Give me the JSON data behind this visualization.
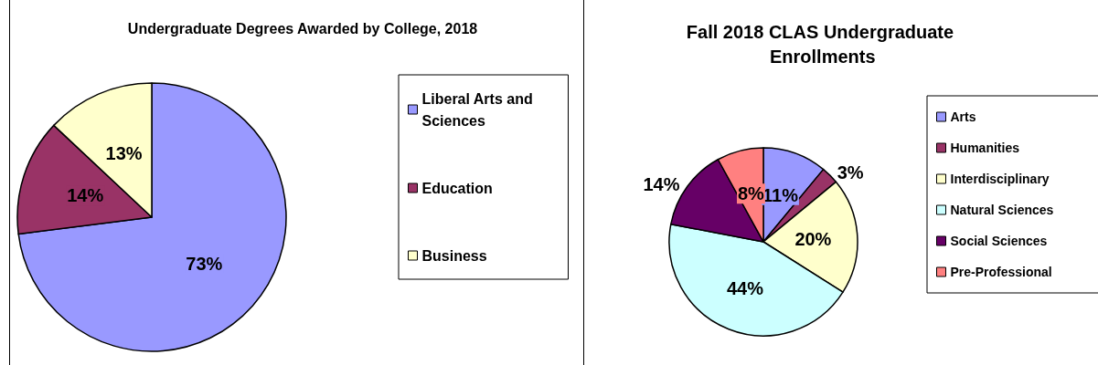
{
  "chart_data": [
    {
      "type": "pie",
      "title": "Undergraduate Degrees Awarded by College, 2018",
      "categories": [
        "Liberal Arts and Sciences",
        "Education",
        "Business"
      ],
      "values": [
        73,
        14,
        13
      ],
      "value_labels": [
        "73%",
        "14%",
        "13%"
      ],
      "colors": [
        "#9999ff",
        "#993366",
        "#ffffcc"
      ],
      "legend": "right"
    },
    {
      "type": "pie",
      "title": "Fall 2018 CLAS Undergraduate Enrollments",
      "categories": [
        "Arts",
        "Humanities",
        "Interdisciplinary",
        "Natural Sciences",
        "Social Sciences",
        "Pre-Professional"
      ],
      "values": [
        11,
        3,
        20,
        44,
        14,
        8
      ],
      "value_labels": [
        "11%",
        "3%",
        "20%",
        "44%",
        "14%",
        "8%"
      ],
      "colors": [
        "#9999ff",
        "#993366",
        "#ffffcc",
        "#ccffff",
        "#660066",
        "#ff8080"
      ],
      "legend": "right"
    }
  ]
}
